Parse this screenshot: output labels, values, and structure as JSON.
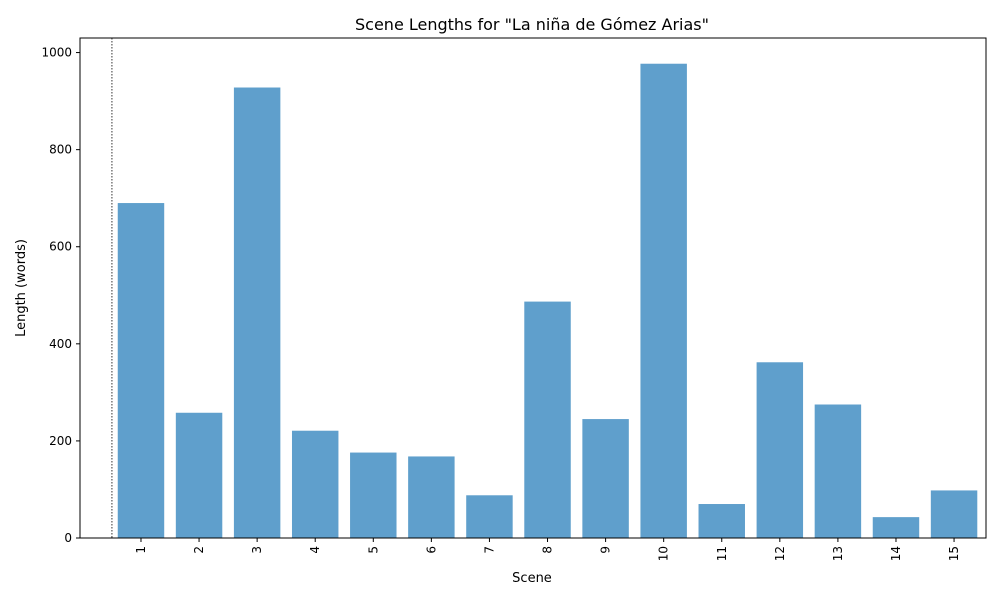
{
  "chart_data": {
    "type": "bar",
    "title": "Scene Lengths for \"La niña de Gómez Arias\"",
    "xlabel": "Scene",
    "ylabel": "Length (words)",
    "categories": [
      "1",
      "2",
      "3",
      "4",
      "5",
      "6",
      "7",
      "8",
      "9",
      "10",
      "11",
      "12",
      "13",
      "14",
      "15"
    ],
    "values": [
      690,
      258,
      928,
      221,
      176,
      168,
      88,
      487,
      245,
      977,
      70,
      362,
      275,
      43,
      98
    ],
    "ylim": [
      0,
      1030
    ],
    "yticks": [
      0,
      200,
      400,
      600,
      800,
      1000
    ],
    "bar_color": "#5f9fcc",
    "grid": false,
    "reference_line": {
      "x": 0.5,
      "style": "dotted",
      "color": "#000000"
    }
  }
}
